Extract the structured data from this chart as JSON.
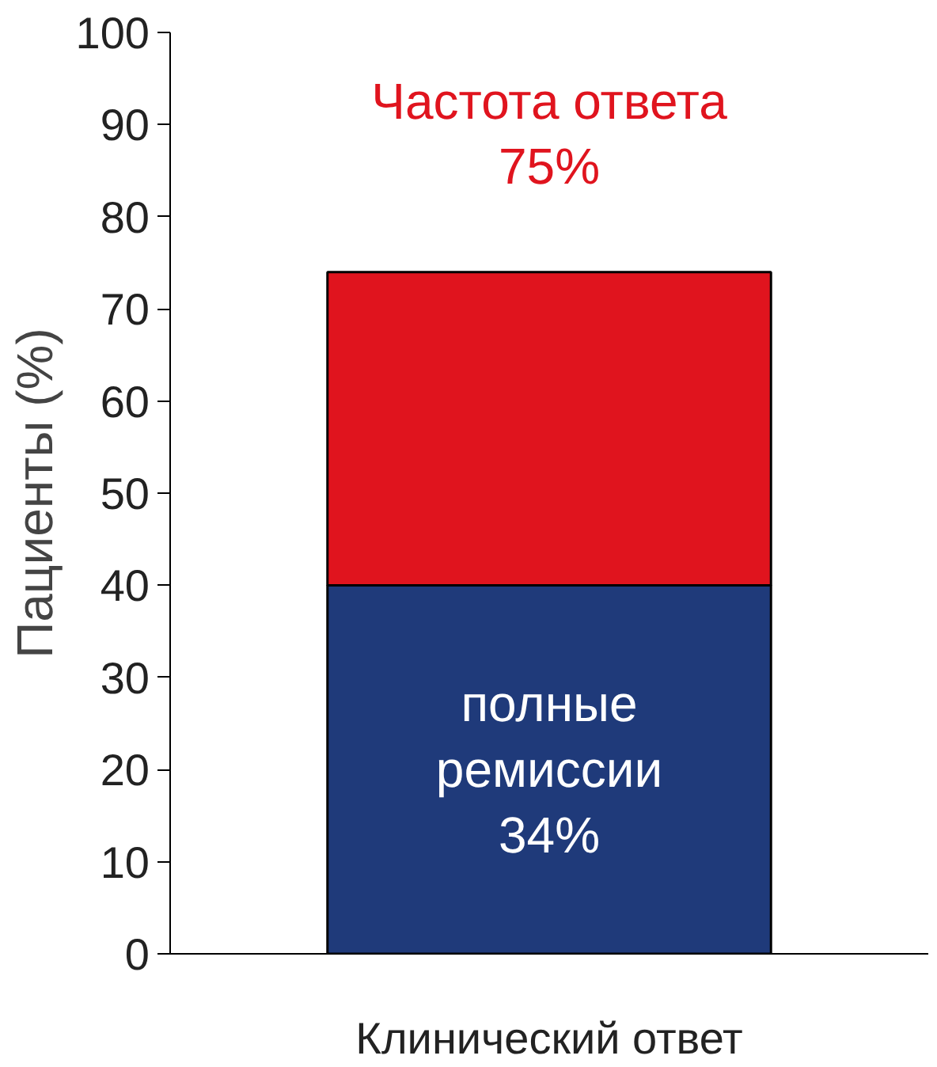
{
  "chart_data": {
    "type": "bar",
    "stacked": true,
    "ylabel": "Пациенты (%)",
    "categories": [
      "Клинический ответ"
    ],
    "series": [
      {
        "color": "#1f3a7a",
        "values": [
          40
        ]
      },
      {
        "color": "#e0141e",
        "values": [
          34
        ]
      }
    ],
    "ylim": [
      0,
      100
    ],
    "yticks": [
      0,
      10,
      20,
      30,
      40,
      50,
      60,
      70,
      80,
      90,
      100
    ],
    "grid": false,
    "annotations": [
      "полные\nремиссии\n34%",
      "Частота ответа\n75%"
    ]
  }
}
